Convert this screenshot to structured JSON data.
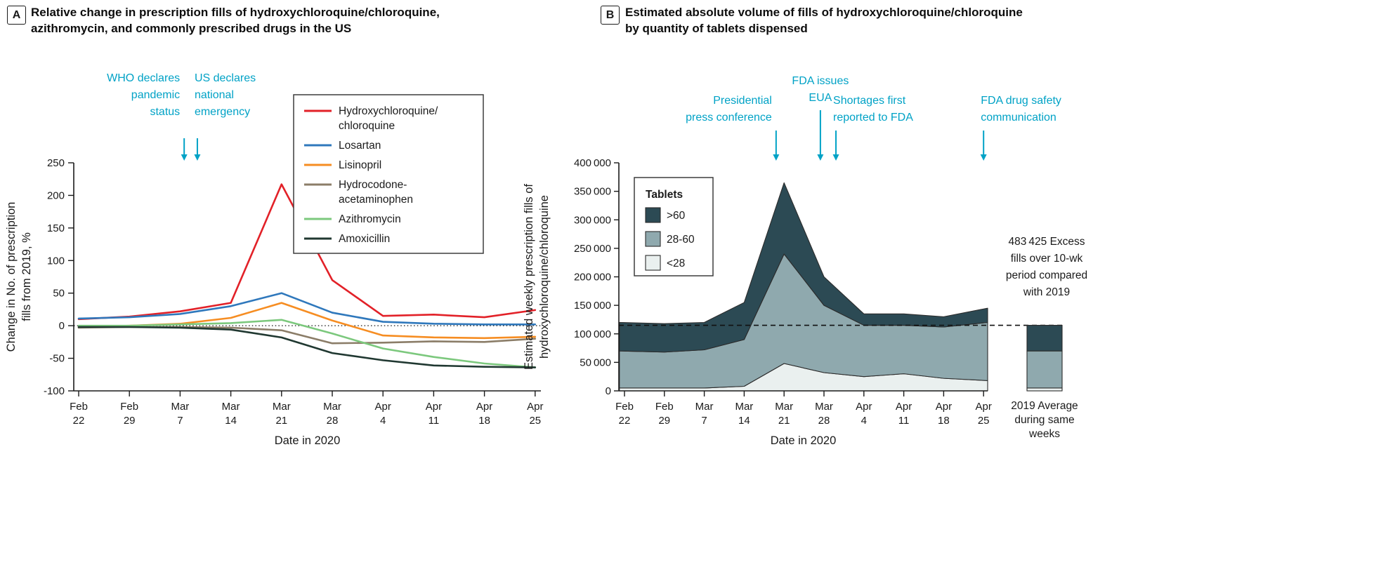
{
  "figure": {
    "annotation_color": "#00a2c6",
    "text_color": "#1a1a1a",
    "panels": [
      {
        "label": "A",
        "title_lines": [
          "Relative change in prescription fills of hydroxychloroquine/chloroquine,",
          "azithromycin, and commonly prescribed drugs in the US"
        ]
      },
      {
        "label": "B",
        "title_lines": [
          "Estimated absolute volume of fills of hydroxychloroquine/chloroquine",
          "by quantity of tablets dispensed"
        ]
      }
    ]
  },
  "chart_data": [
    {
      "type": "line",
      "panel": "A",
      "title": "Relative change in prescription fills of hydroxychloroquine/chloroquine, azithromycin, and commonly prescribed drugs in the US",
      "xlabel": "Date in 2020",
      "ylabel_lines": [
        "Change in No. of prescription",
        "fills from 2019, %"
      ],
      "ylim": [
        -100,
        250
      ],
      "yticks": [
        250,
        200,
        150,
        100,
        50,
        0,
        -50,
        -100
      ],
      "zero_line": "dotted",
      "grid": false,
      "legend_position": "upper right",
      "categories": [
        "Feb 22",
        "Feb 29",
        "Mar 7",
        "Mar 14",
        "Mar 21",
        "Mar 28",
        "Apr 4",
        "Apr 11",
        "Apr 18",
        "Apr 25"
      ],
      "series": [
        {
          "name": "Hydroxychloroquine/chloroquine",
          "name_lines": [
            "Hydroxychloroquine/",
            "chloroquine"
          ],
          "color": "#e22128",
          "values": [
            10,
            14,
            22,
            35,
            217,
            70,
            15,
            17,
            13,
            24
          ]
        },
        {
          "name": "Losartan",
          "name_lines": [
            "Losartan"
          ],
          "color": "#2f78bc",
          "values": [
            11,
            13,
            18,
            30,
            50,
            20,
            6,
            3,
            2,
            2
          ]
        },
        {
          "name": "Lisinopril",
          "name_lines": [
            "Lisinopril"
          ],
          "color": "#f68d22",
          "values": [
            -2,
            0,
            3,
            12,
            35,
            8,
            -15,
            -18,
            -19,
            -17
          ]
        },
        {
          "name": "Hydrocodone-acetaminophen",
          "name_lines": [
            "Hydrocodone-",
            "acetaminophen"
          ],
          "color": "#8b7d68",
          "values": [
            -3,
            -2,
            -2,
            -3,
            -7,
            -27,
            -26,
            -24,
            -25,
            -20
          ]
        },
        {
          "name": "Azithromycin",
          "name_lines": [
            "Azithromycin"
          ],
          "color": "#7cc87d",
          "values": [
            0,
            0,
            2,
            4,
            9,
            -12,
            -35,
            -48,
            -58,
            -64
          ]
        },
        {
          "name": "Amoxicillin",
          "name_lines": [
            "Amoxicillin"
          ],
          "color": "#203831",
          "values": [
            -2,
            -2,
            -3,
            -6,
            -18,
            -42,
            -53,
            -61,
            -63,
            -64
          ]
        }
      ],
      "annotations": [
        {
          "lines": [
            "WHO declares",
            "pandemic",
            "status"
          ],
          "align": "right",
          "x_index": 2.08,
          "text_y": 116,
          "arrow_y1": 197,
          "arrow_y2": 229
        },
        {
          "lines": [
            "US declares",
            "national",
            "emergency"
          ],
          "align": "left",
          "x_index": 2.34,
          "text_y": 116,
          "arrow_y1": 197,
          "arrow_y2": 229
        }
      ]
    },
    {
      "type": "stacked_area",
      "panel": "B",
      "title": "Estimated absolute volume of fills of hydroxychloroquine/chloroquine by quantity of tablets dispensed",
      "xlabel": "Date in 2020",
      "ylabel_lines": [
        "Estimated weekly prescription fills of",
        "hydroxychloroquine/chloroquine"
      ],
      "ylim": [
        0,
        400000
      ],
      "yticks": [
        0,
        50000,
        100000,
        150000,
        200000,
        250000,
        300000,
        350000,
        400000
      ],
      "ytick_labels": [
        "0",
        "50 000",
        "100 000",
        "150 000",
        "200 000",
        "250 000",
        "300 000",
        "350 000",
        "400 000"
      ],
      "grid": false,
      "legend_title": "Tablets",
      "legend_position": "upper left",
      "categories": [
        "Feb 22",
        "Feb 29",
        "Mar 7",
        "Mar 14",
        "Mar 21",
        "Mar 28",
        "Apr 4",
        "Apr 11",
        "Apr 18",
        "Apr 25"
      ],
      "layers": [
        {
          "label": "<28",
          "color": "#eaf0ef",
          "values": [
            5000,
            5000,
            5000,
            8000,
            48000,
            32000,
            25000,
            30000,
            22000,
            18000
          ]
        },
        {
          "label": "28-60",
          "color": "#8fa9ae",
          "values": [
            65000,
            63000,
            67000,
            82000,
            192000,
            118000,
            90000,
            85000,
            90000,
            102000
          ]
        },
        {
          "label": ">60",
          "color": "#2c4a54",
          "values": [
            50000,
            50000,
            48000,
            65000,
            125000,
            50000,
            20000,
            20000,
            18000,
            25000
          ]
        }
      ],
      "baseline_2019_avg": 115000,
      "baseline_style": "dashed",
      "excess_note_lines": [
        "483 425 Excess",
        "fills over 10-wk",
        "period compared",
        "with 2019"
      ],
      "avg_bar": {
        "caption_lines": [
          "2019 Average",
          "during same",
          "weeks"
        ],
        "segments": [
          {
            "label": "<28",
            "value": 5000
          },
          {
            "label": "28-60",
            "value": 65000
          },
          {
            "label": ">60",
            "value": 45000
          }
        ]
      },
      "annotations": [
        {
          "lines": [
            "Presidential",
            "press conference"
          ],
          "align": "right",
          "x_index": 3.8,
          "text_y": 148,
          "arrow_y1": 186,
          "arrow_y2": 229
        },
        {
          "lines": [
            "FDA issues",
            "EUA"
          ],
          "align": "center",
          "x_index": 4.91,
          "text_y": 120,
          "arrow_y1": 157,
          "arrow_y2": 229
        },
        {
          "lines": [
            "Shortages first",
            "reported to FDA"
          ],
          "align": "left",
          "x_index": 5.3,
          "text_y": 148,
          "arrow_y1": 186,
          "arrow_y2": 229
        },
        {
          "lines": [
            "FDA drug safety",
            "communication"
          ],
          "align": "left",
          "x_index": 9.0,
          "text_y": 148,
          "arrow_y1": 186,
          "arrow_y2": 229
        }
      ]
    }
  ]
}
